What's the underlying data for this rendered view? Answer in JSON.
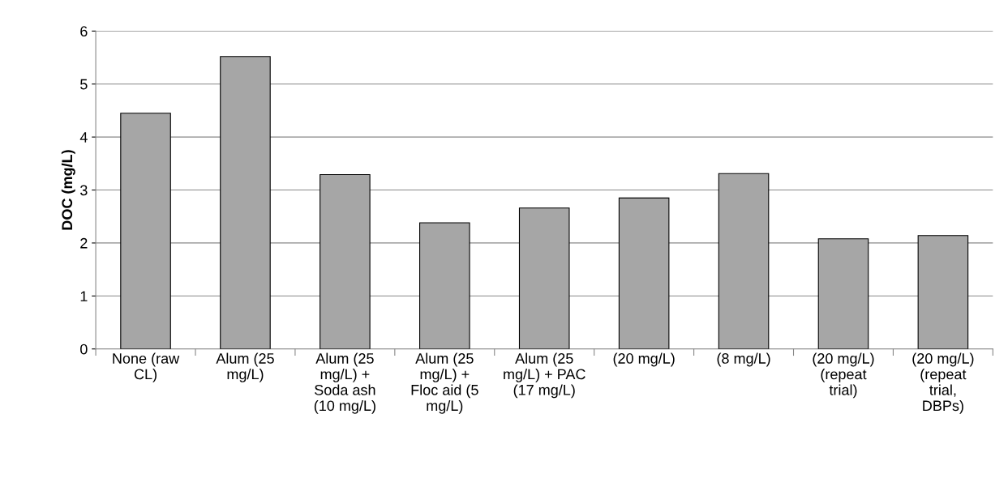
{
  "chart_data": {
    "type": "bar",
    "ylabel": "DOC (mg/L)",
    "categories": [
      "None (raw CL)",
      "Alum (25 mg/L)",
      "Alum (25 mg/L) + Soda ash (10 mg/L)",
      "Alum (25 mg/L) + Floc aid (5 mg/L)",
      "Alum (25 mg/L) + PAC (17 mg/L)",
      "(20 mg/L)",
      "(8 mg/L)",
      "(20 mg/L) (repeat trial)",
      "(20 mg/L) (repeat trial, DBPs)"
    ],
    "values": [
      4.45,
      5.52,
      3.29,
      2.38,
      2.66,
      2.85,
      3.31,
      2.08,
      2.14
    ],
    "color": "#a6a6a6",
    "ylim": [
      0,
      6
    ],
    "yticks": [
      0,
      1,
      2,
      3,
      4,
      5,
      6
    ],
    "grid": "y",
    "legend": false
  }
}
